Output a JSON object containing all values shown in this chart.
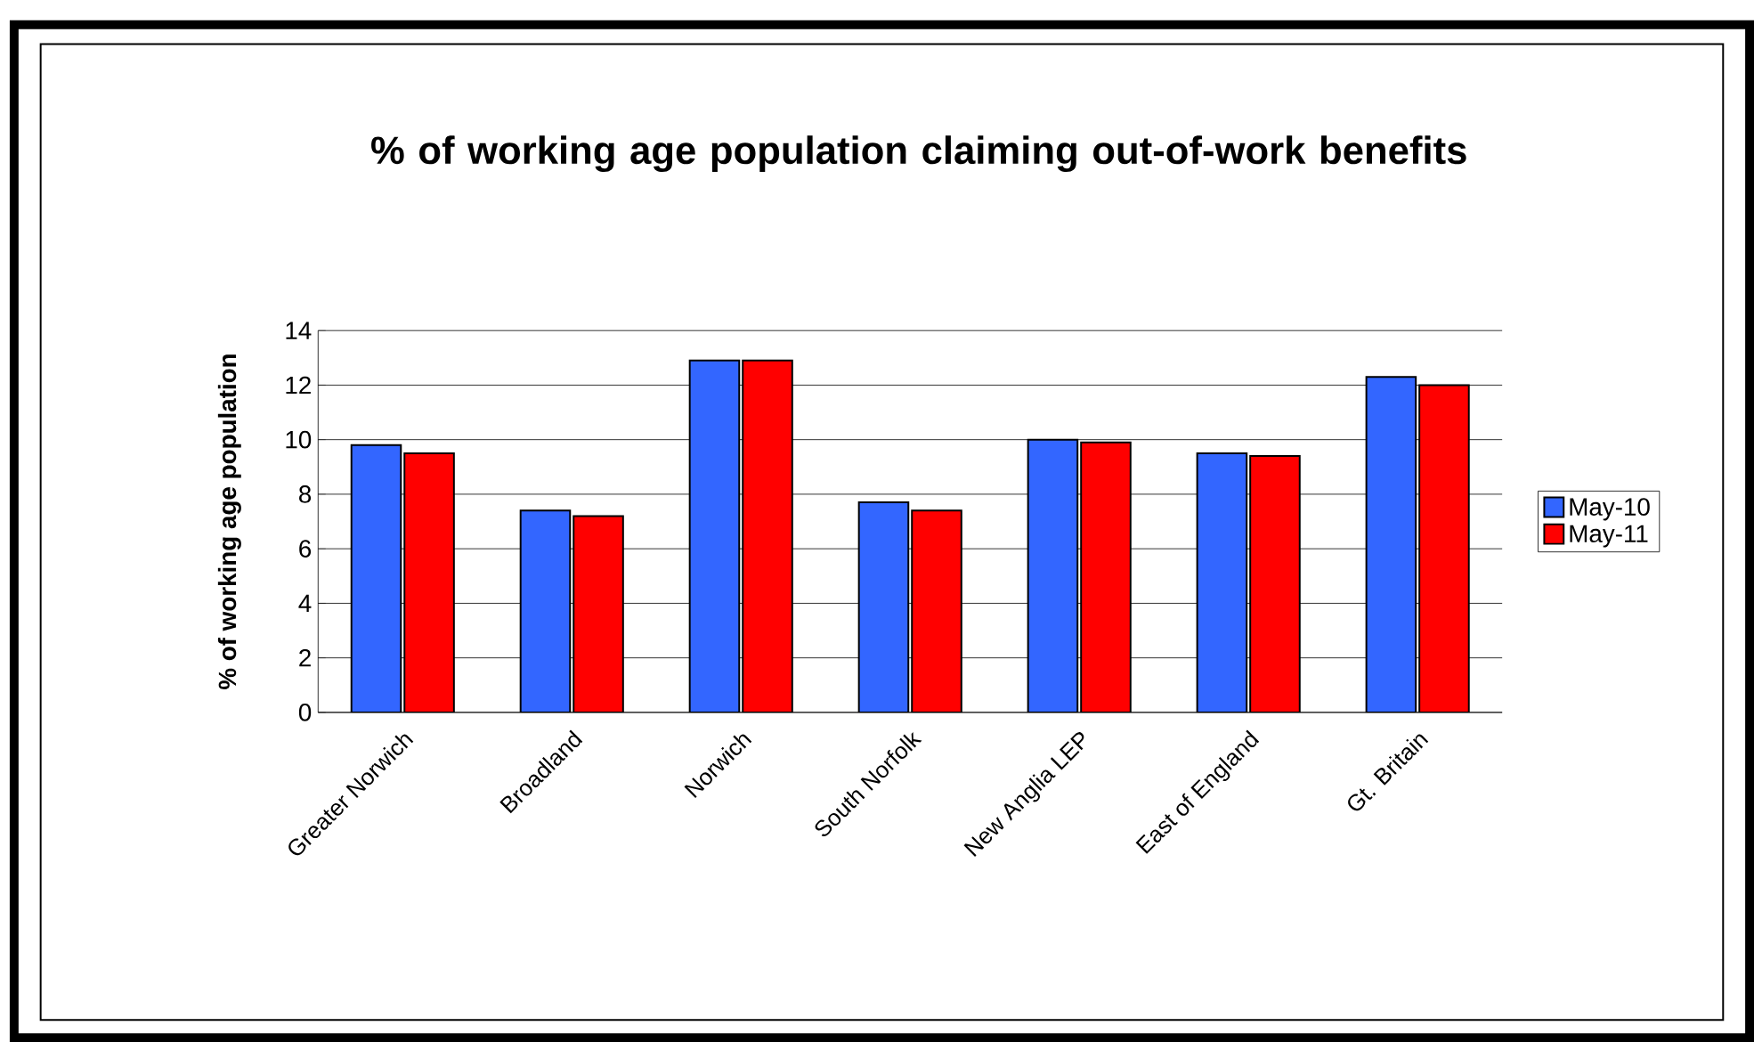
{
  "chart_data": {
    "type": "bar",
    "title": "% of working age population claiming out-of-work benefits",
    "ylabel": "% of working age population",
    "categories": [
      "Greater Norwich",
      "Broadland",
      "Norwich",
      "South Norfolk",
      "New Anglia LEP",
      "East of England",
      "Gt. Britain"
    ],
    "series": [
      {
        "name": "May-10",
        "color": "#3366ff",
        "values": [
          9.8,
          7.4,
          12.9,
          7.7,
          10.0,
          9.5,
          12.3
        ]
      },
      {
        "name": "May-11",
        "color": "#ff0000",
        "values": [
          9.5,
          7.2,
          12.9,
          7.4,
          9.9,
          9.4,
          12.0
        ]
      }
    ],
    "ylim": [
      0,
      14
    ],
    "yticks": [
      0,
      2,
      4,
      6,
      8,
      10,
      12,
      14
    ],
    "grid": "y",
    "legend": "right"
  }
}
